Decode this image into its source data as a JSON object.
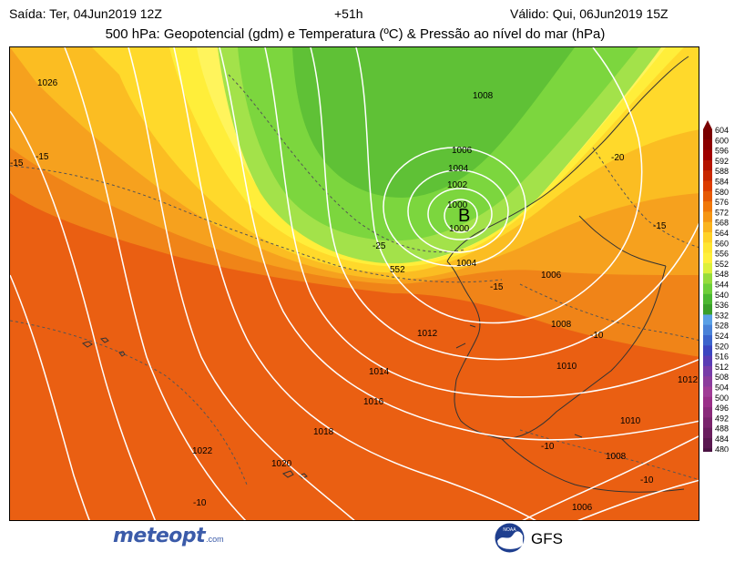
{
  "header": {
    "issued": "Saída: Ter, 04Jun2019 12Z",
    "lead": "+51h",
    "valid": "Válido: Qui, 06Jun2019 15Z",
    "title": "500 hPa: Geopotencial (gdm) e Temperatura (ºC) & Pressão ao nível do mar (hPa)"
  },
  "map": {
    "low_center": "B",
    "isobar_labels": [
      "1026",
      "1008",
      "1006",
      "1004",
      "1002",
      "1000",
      "1000",
      "1004",
      "1006",
      "1008",
      "1010",
      "1010",
      "1012",
      "1012",
      "1014",
      "1016",
      "1018",
      "1020",
      "1022",
      "1008",
      "1006"
    ],
    "temperature_labels": [
      "-15",
      "-15",
      "-25",
      "-20",
      "-15",
      "-15",
      "-10",
      "-10",
      "-10",
      "-10"
    ],
    "geopotential_labels": [
      "552"
    ]
  },
  "legend": {
    "levels": [
      "604",
      "600",
      "596",
      "592",
      "588",
      "584",
      "580",
      "576",
      "572",
      "568",
      "564",
      "560",
      "556",
      "552",
      "548",
      "544",
      "540",
      "536",
      "532",
      "528",
      "524",
      "520",
      "516",
      "512",
      "508",
      "504",
      "500",
      "496",
      "492",
      "488",
      "484",
      "480"
    ],
    "colors": [
      "#7a0000",
      "#8c0000",
      "#a00000",
      "#b41400",
      "#c82800",
      "#dc3c00",
      "#e65a05",
      "#f0780a",
      "#f59614",
      "#fab41e",
      "#ffd228",
      "#ffe632",
      "#fff03c",
      "#dcf03c",
      "#96dc3c",
      "#6ecf3a",
      "#4bb832",
      "#3a9f2a",
      "#5aa0e6",
      "#4a82d8",
      "#3c64cc",
      "#3c46c0",
      "#5a3cb4",
      "#783ca8",
      "#8c3c9c",
      "#a03c96",
      "#9a2f88",
      "#8a2a7a",
      "#7a246c",
      "#6a1e5e",
      "#5a1850",
      "#4a1242"
    ]
  },
  "footer": {
    "logo_text_a": "meteo",
    "logo_text_b": "pt",
    "logo_suffix": ".com",
    "noaa": "NOAA",
    "model": "GFS"
  }
}
